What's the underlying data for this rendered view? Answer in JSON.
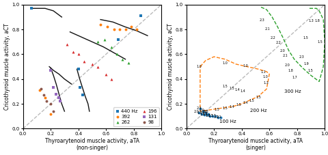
{
  "chart_data": [
    {
      "type": "scatter",
      "x_label": "Thyroarytenoid muscle activity, aTA\n(non-singer)",
      "y_label": "Cricothyroid muscle activity, aCT",
      "xlim": [
        0,
        1.0
      ],
      "ylim": [
        0,
        1.0
      ],
      "xticks": [
        0.0,
        0.2,
        0.4,
        0.6,
        0.8,
        1.0
      ],
      "yticks": [
        0.0,
        0.2,
        0.4,
        0.6,
        0.8,
        1.0
      ],
      "grid": false,
      "legend": "lower right",
      "series": [
        {
          "type": "line",
          "x": [
            0,
            1
          ],
          "y": [
            0,
            1
          ],
          "color": "#bbbbbb",
          "line_style": "dashed"
        },
        {
          "type": "line",
          "x": [
            0.06,
            0.1,
            0.16,
            0.22,
            0.28
          ],
          "y": [
            0.97,
            0.97,
            0.97,
            0.95,
            0.9
          ],
          "color": "#111111",
          "line_style": "solid"
        },
        {
          "type": "line",
          "x": [
            0.56,
            0.65,
            0.74,
            0.82,
            0.9
          ],
          "y": [
            0.88,
            0.86,
            0.82,
            0.79,
            0.75
          ],
          "color": "#111111",
          "line_style": "solid"
        },
        {
          "type": "line",
          "x": [
            0.34,
            0.42,
            0.5,
            0.58,
            0.66,
            0.74
          ],
          "y": [
            0.78,
            0.74,
            0.7,
            0.66,
            0.61,
            0.56
          ],
          "color": "#111111",
          "line_style": "solid"
        },
        {
          "type": "line",
          "x": [
            0.19,
            0.22,
            0.26,
            0.3,
            0.35
          ],
          "y": [
            0.5,
            0.47,
            0.44,
            0.4,
            0.36
          ],
          "color": "#111111",
          "line_style": "solid"
        },
        {
          "type": "line",
          "x": [
            0.2,
            0.22,
            0.24,
            0.26,
            0.28,
            0.3
          ],
          "y": [
            0.49,
            0.43,
            0.36,
            0.28,
            0.2,
            0.14
          ],
          "color": "#111111",
          "line_style": "solid"
        },
        {
          "type": "line",
          "x": [
            0.39,
            0.41,
            0.43,
            0.45,
            0.47,
            0.48
          ],
          "y": [
            0.48,
            0.4,
            0.33,
            0.26,
            0.2,
            0.14
          ],
          "color": "#111111",
          "line_style": "solid"
        },
        {
          "name": "440 Hz",
          "type": "scatter",
          "marker": "square",
          "x": [
            0.4,
            0.41,
            0.43,
            0.69,
            0.85,
            0.06
          ],
          "y": [
            0.48,
            0.33,
            0.27,
            0.72,
            0.91,
            0.97
          ]
        },
        {
          "name": "392",
          "type": "scatter",
          "marker": "circle",
          "x": [
            0.12,
            0.16,
            0.2,
            0.56,
            0.61,
            0.66,
            0.7,
            0.74,
            0.78,
            0.82
          ],
          "y": [
            0.31,
            0.25,
            0.12,
            0.84,
            0.82,
            0.8,
            0.8,
            0.8,
            0.82,
            0.8
          ]
        },
        {
          "name": "262",
          "type": "scatter",
          "marker": "triangle",
          "x": [
            0.54,
            0.59,
            0.64,
            0.68,
            0.72,
            0.76
          ],
          "y": [
            0.7,
            0.72,
            0.66,
            0.6,
            0.56,
            0.53
          ]
        },
        {
          "name": "196",
          "type": "scatter",
          "marker": "triangle",
          "x": [
            0.32,
            0.36,
            0.4,
            0.44,
            0.5,
            0.54,
            0.6,
            0.64
          ],
          "y": [
            0.68,
            0.62,
            0.6,
            0.54,
            0.52,
            0.5,
            0.44,
            0.4
          ]
        },
        {
          "name": "131",
          "type": "scatter",
          "marker": "square",
          "x": [
            0.2,
            0.22,
            0.24,
            0.26,
            0.27
          ],
          "y": [
            0.47,
            0.33,
            0.28,
            0.25,
            0.22
          ]
        },
        {
          "name": "98",
          "type": "scatter",
          "marker": "circle",
          "x": [
            0.13,
            0.15,
            0.17,
            0.2,
            0.22
          ],
          "y": [
            0.32,
            0.27,
            0.22,
            0.2,
            0.14
          ]
        }
      ]
    },
    {
      "type": "line",
      "x_label": "Thyroarytenoid muscle activity, aTA\n(singer)",
      "y_label": "Cricothyroid muscle activity, aCT",
      "xlim": [
        0,
        1.0
      ],
      "ylim": [
        0,
        1.0
      ],
      "xticks": [
        0.0,
        0.2,
        0.4,
        0.6,
        0.8,
        1.0
      ],
      "yticks": [
        0.0,
        0.2,
        0.4,
        0.6,
        0.8,
        1.0
      ],
      "grid": false,
      "series": [
        {
          "type": "line",
          "x": [
            0,
            1
          ],
          "y": [
            0,
            1
          ],
          "color": "#bbbbbb",
          "line_style": "dashed"
        },
        {
          "type": "scatter",
          "marker": "circle",
          "x": [
            0.09,
            0.11,
            0.13,
            0.15,
            0.17,
            0.19,
            0.21,
            0.23,
            0.25,
            0.1,
            0.12,
            0.14,
            0.16
          ],
          "y": [
            0.13,
            0.12,
            0.11,
            0.11,
            0.1,
            0.1,
            0.1,
            0.09,
            0.09,
            0.16,
            0.14,
            0.13,
            0.12
          ]
        },
        {
          "type": "line",
          "line_style": "dashed",
          "x": [
            0.1,
            0.14,
            0.2,
            0.28,
            0.36,
            0.44,
            0.52,
            0.58,
            0.6,
            0.58,
            0.52,
            0.46,
            0.4,
            0.34,
            0.28,
            0.22,
            0.16,
            0.1,
            0.1
          ],
          "y": [
            0.5,
            0.55,
            0.58,
            0.56,
            0.52,
            0.5,
            0.48,
            0.46,
            0.44,
            0.32,
            0.26,
            0.23,
            0.2,
            0.18,
            0.17,
            0.16,
            0.15,
            0.14,
            0.5
          ]
        },
        {
          "type": "line",
          "line_style": "dashed",
          "x": [
            0.54,
            0.58,
            0.62,
            0.66,
            0.7,
            0.74,
            0.78,
            0.84,
            0.9,
            0.96,
            0.99,
            1.0,
            0.99,
            0.96,
            0.94,
            0.9,
            0.88
          ],
          "y": [
            0.98,
            0.96,
            0.9,
            0.82,
            0.73,
            0.63,
            0.56,
            0.49,
            0.43,
            0.38,
            0.5,
            0.7,
            0.88,
            0.95,
            0.97,
            0.97,
            0.97
          ]
        }
      ],
      "annotations": [
        {
          "text": "2.0",
          "x": 0.075,
          "y": 0.135
        },
        {
          "text": "1.9",
          "x": 0.095,
          "y": 0.125
        },
        {
          "text": "1.9",
          "x": 0.115,
          "y": 0.115
        },
        {
          "text": "1.8",
          "x": 0.135,
          "y": 0.115
        },
        {
          "text": "1.8",
          "x": 0.155,
          "y": 0.105
        },
        {
          "text": "1.7",
          "x": 0.175,
          "y": 0.105
        },
        {
          "text": "1.7",
          "x": 0.195,
          "y": 0.105
        },
        {
          "text": "2.1",
          "x": 0.215,
          "y": 0.095
        },
        {
          "text": "2.1",
          "x": 0.235,
          "y": 0.095
        },
        {
          "text": "2.1",
          "x": 0.095,
          "y": 0.165
        },
        {
          "text": "2.0",
          "x": 0.115,
          "y": 0.148
        },
        {
          "text": "2.0",
          "x": 0.135,
          "y": 0.135
        },
        {
          "text": "100 Hz",
          "x": 0.24,
          "y": 0.055
        },
        {
          "text": "1.0",
          "x": 0.09,
          "y": 0.5
        },
        {
          "text": "1.0",
          "x": 0.28,
          "y": 0.53
        },
        {
          "text": "1.0",
          "x": 0.43,
          "y": 0.505
        },
        {
          "text": "1.1",
          "x": 0.555,
          "y": 0.455
        },
        {
          "text": "1.0",
          "x": 0.57,
          "y": 0.42
        },
        {
          "text": "1.3",
          "x": 0.575,
          "y": 0.37
        },
        {
          "text": "1.5",
          "x": 0.52,
          "y": 0.255
        },
        {
          "text": "1.5",
          "x": 0.475,
          "y": 0.225
        },
        {
          "text": "1.4",
          "x": 0.43,
          "y": 0.21
        },
        {
          "text": "1.5",
          "x": 0.38,
          "y": 0.19
        },
        {
          "text": "1.4",
          "x": 0.33,
          "y": 0.175
        },
        {
          "text": "1.5",
          "x": 0.28,
          "y": 0.165
        },
        {
          "text": "1.5",
          "x": 0.22,
          "y": 0.153
        },
        {
          "text": "1.3",
          "x": 0.14,
          "y": 0.135
        },
        {
          "text": "1.5",
          "x": 0.28,
          "y": 0.34
        },
        {
          "text": "1.5",
          "x": 0.33,
          "y": 0.325
        },
        {
          "text": "1.4",
          "x": 0.37,
          "y": 0.315
        },
        {
          "text": "1.4",
          "x": 0.41,
          "y": 0.305
        },
        {
          "text": "200 Hz",
          "x": 0.46,
          "y": 0.145
        },
        {
          "text": "2.3",
          "x": 0.545,
          "y": 0.875
        },
        {
          "text": "2.1",
          "x": 0.585,
          "y": 0.805
        },
        {
          "text": "2.2",
          "x": 0.625,
          "y": 0.73
        },
        {
          "text": "2.2",
          "x": 0.665,
          "y": 0.695
        },
        {
          "text": "2.0",
          "x": 0.695,
          "y": 0.625
        },
        {
          "text": "2.1",
          "x": 0.715,
          "y": 0.59
        },
        {
          "text": "2.0",
          "x": 0.73,
          "y": 0.51
        },
        {
          "text": "1.8",
          "x": 0.755,
          "y": 0.465
        },
        {
          "text": "1.7",
          "x": 0.785,
          "y": 0.415
        },
        {
          "text": "2.3",
          "x": 0.835,
          "y": 0.58
        },
        {
          "text": "1.9",
          "x": 0.865,
          "y": 0.525
        },
        {
          "text": "1.5",
          "x": 0.895,
          "y": 0.465
        },
        {
          "text": "1.5",
          "x": 0.865,
          "y": 0.73
        },
        {
          "text": "1.3",
          "x": 0.9,
          "y": 0.87
        },
        {
          "text": "1.8",
          "x": 0.945,
          "y": 0.87
        },
        {
          "text": "1.5",
          "x": 0.965,
          "y": 0.7
        },
        {
          "text": "300 Hz",
          "x": 0.71,
          "y": 0.3
        }
      ]
    }
  ]
}
